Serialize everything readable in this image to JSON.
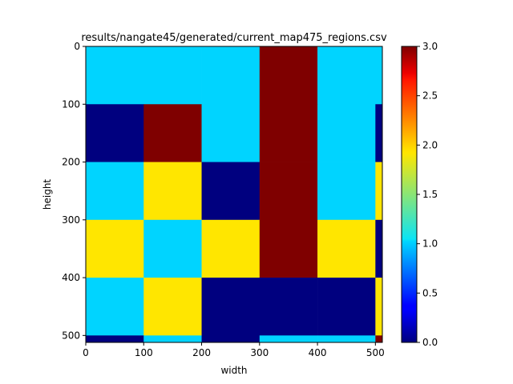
{
  "chart_data": {
    "type": "heatmap",
    "title": "results/nangate45/generated/current_map475_regions.csv",
    "xlabel": "width",
    "ylabel": "height",
    "colormap": "jet",
    "vmin": 0.0,
    "vmax": 3.0,
    "xlim": [
      0,
      512
    ],
    "ylim": [
      512,
      0
    ],
    "x_ticks": [
      0,
      100,
      200,
      300,
      400,
      500
    ],
    "y_ticks": [
      0,
      100,
      200,
      300,
      400,
      500
    ],
    "colorbar_ticks": [
      "0.0",
      "0.5",
      "1.0",
      "1.5",
      "2.0",
      "2.5",
      "3.0"
    ],
    "cell_size": 100,
    "grid": false,
    "legend": "colorbar-right",
    "values": [
      [
        1,
        1,
        1,
        3,
        1,
        1
      ],
      [
        0,
        3,
        1,
        3,
        1,
        0
      ],
      [
        1,
        2,
        0,
        3,
        1,
        2
      ],
      [
        2,
        1,
        2,
        3,
        2,
        0
      ],
      [
        1,
        2,
        0,
        0,
        0,
        2
      ],
      [
        0,
        1,
        0,
        1,
        1,
        3
      ]
    ]
  }
}
